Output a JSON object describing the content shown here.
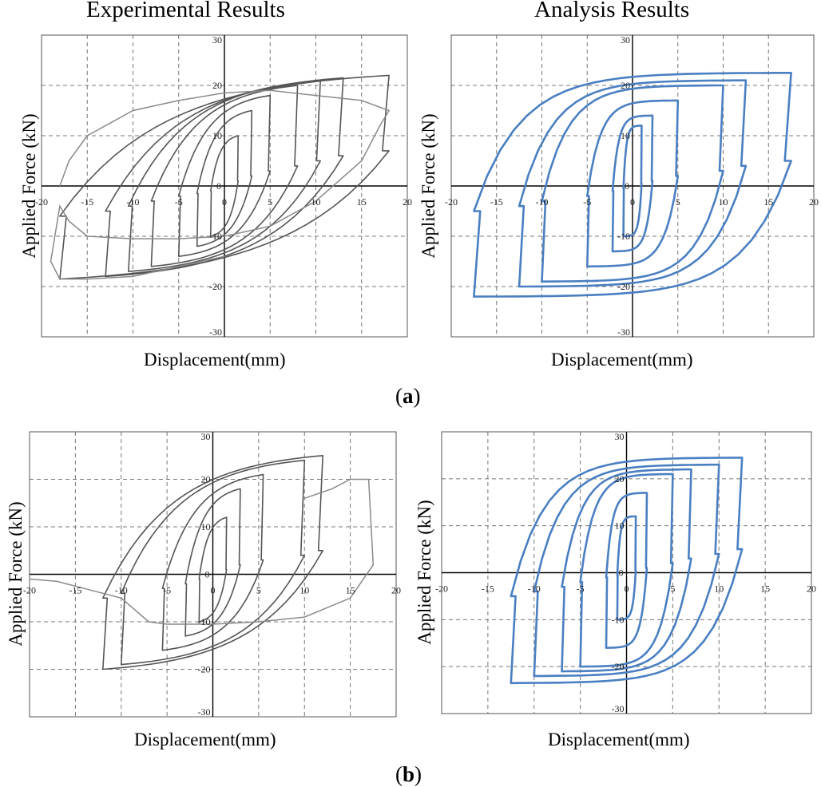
{
  "column_titles": {
    "left": "Experimental Results",
    "right": "Analysis Results"
  },
  "panel_labels": {
    "a_open": "(",
    "a": "a",
    "a_close": ")",
    "b_open": "(",
    "b": "b",
    "b_close": ")"
  },
  "colors": {
    "experimental": "#555555",
    "analysis": "#4a7fc2",
    "grid": "#777777"
  },
  "chart_data": [
    {
      "id": "a-experimental",
      "type": "line",
      "panel": "a",
      "title": "Experimental Results",
      "xlabel": "Displacement(mm)",
      "ylabel": "Applied Force (kN)",
      "xlim": [
        -20,
        20
      ],
      "ylim": [
        -30,
        30
      ],
      "xticks": [
        -20,
        -15,
        -10,
        -5,
        0,
        5,
        10,
        15,
        20
      ],
      "yticks": [
        -30,
        -20,
        -10,
        0,
        10,
        20,
        30
      ],
      "grid": true,
      "style": "experimental",
      "loops": [
        {
          "amp": 1.5,
          "fp": 10,
          "fn": -10,
          "vp": 1,
          "vn": -1
        },
        {
          "amp": 3,
          "fp": 15,
          "fn": -12,
          "vp": 2,
          "vn": -1.5
        },
        {
          "amp": 5,
          "fp": 18,
          "fn": -14,
          "vp": 3,
          "vn": -2
        },
        {
          "amp": 8,
          "fp": 20,
          "fn": -16,
          "vp": 4,
          "vn": -3
        },
        {
          "amp": 10.5,
          "fp": 21,
          "fn": -17,
          "vp": 5,
          "vn": -4
        },
        {
          "amp": 13,
          "fp": 21.5,
          "fn": -18,
          "vp": 6,
          "vn": -5
        },
        {
          "amp": 18,
          "fp": 22,
          "fn": -18.5,
          "vp": 7,
          "vn": -6
        }
      ],
      "extra_curve": {
        "x": [
          -18,
          -17,
          -15,
          -10,
          -5,
          0,
          5,
          10,
          15,
          18,
          17,
          15,
          10,
          5,
          0,
          -5,
          -10,
          -15,
          -17,
          -18,
          -19,
          -18,
          -15,
          -10,
          -5,
          0
        ],
        "y": [
          0,
          5,
          10,
          15,
          17,
          18.5,
          19,
          18,
          17,
          15,
          12,
          5,
          -3,
          -8,
          -10,
          -10.5,
          -10.5,
          -10,
          -7,
          -4,
          -15,
          -18.5,
          -18.5,
          -18,
          -16,
          -14
        ]
      }
    },
    {
      "id": "a-analysis",
      "type": "line",
      "panel": "a",
      "title": "Analysis Results",
      "xlabel": "Displacement(mm)",
      "ylabel": "Applied Force (kN)",
      "xlim": [
        -20,
        20
      ],
      "ylim": [
        -30,
        30
      ],
      "xticks": [
        -20,
        -15,
        -10,
        -5,
        0,
        5,
        10,
        15,
        20
      ],
      "yticks": [
        -30,
        -20,
        -10,
        0,
        10,
        20,
        30
      ],
      "grid": true,
      "style": "analysis",
      "loops": [
        {
          "amp": 1,
          "fp": 12,
          "fn": -10,
          "vp": 0.5,
          "vn": -0.5
        },
        {
          "amp": 2.2,
          "fp": 14,
          "fn": -13,
          "vp": 1,
          "vn": -1
        },
        {
          "amp": 5,
          "fp": 17,
          "fn": -16,
          "vp": 2,
          "vn": -2
        },
        {
          "amp": 10,
          "fp": 20,
          "fn": -19,
          "vp": 3,
          "vn": -3
        },
        {
          "amp": 12.5,
          "fp": 21,
          "fn": -20,
          "vp": 4,
          "vn": -4
        },
        {
          "amp": 17.5,
          "fp": 22.5,
          "fn": -22,
          "vp": 5,
          "vn": -5
        }
      ]
    },
    {
      "id": "b-experimental",
      "type": "line",
      "panel": "b",
      "title": "Experimental Results",
      "xlabel": "Displacement(mm)",
      "ylabel": "Applied Force (kN)",
      "xlim": [
        -20,
        20
      ],
      "ylim": [
        -30,
        30
      ],
      "xticks": [
        -20,
        -15,
        -10,
        -5,
        0,
        5,
        10,
        15,
        20
      ],
      "yticks": [
        -30,
        -20,
        -10,
        0,
        10,
        20,
        30
      ],
      "grid": true,
      "style": "experimental",
      "loops": [
        {
          "amp": 1.5,
          "fp": 12,
          "fn": -10,
          "vp": 1,
          "vn": -1
        },
        {
          "amp": 3,
          "fp": 18,
          "fn": -13,
          "vp": 2,
          "vn": -2
        },
        {
          "amp": 5.5,
          "fp": 21,
          "fn": -16,
          "vp": 3,
          "vn": -3
        },
        {
          "amp": 10,
          "fp": 24,
          "fn": -19,
          "vp": 4,
          "vn": -4
        },
        {
          "amp": 12,
          "fp": 25,
          "fn": -20,
          "vp": 5,
          "vn": -5
        }
      ],
      "extra_curve": {
        "x": [
          -20,
          -17,
          -14,
          -12,
          -10,
          -7,
          -5,
          0,
          5,
          10,
          15,
          17.5,
          17,
          15,
          13,
          10
        ],
        "y": [
          -1,
          -1.5,
          -3,
          -4,
          -5,
          -10,
          -10.5,
          -10.5,
          -10,
          -9,
          -5,
          2,
          20,
          20,
          18,
          16
        ]
      }
    },
    {
      "id": "b-analysis",
      "type": "line",
      "panel": "b",
      "title": "Analysis Results",
      "xlabel": "Displacement(mm)",
      "ylabel": "Applied Force (kN)",
      "xlim": [
        -20,
        20
      ],
      "ylim": [
        -30,
        30
      ],
      "xticks": [
        -20,
        -15,
        -10,
        -5,
        0,
        5,
        10,
        15,
        20
      ],
      "yticks": [
        -30,
        -20,
        -10,
        0,
        10,
        20,
        30
      ],
      "grid": true,
      "style": "analysis",
      "loops": [
        {
          "amp": 1,
          "fp": 12,
          "fn": -10,
          "vp": 0.5,
          "vn": -0.5
        },
        {
          "amp": 2.2,
          "fp": 17,
          "fn": -16,
          "vp": 1,
          "vn": -1
        },
        {
          "amp": 5,
          "fp": 21,
          "fn": -20,
          "vp": 2,
          "vn": -2
        },
        {
          "amp": 7,
          "fp": 22,
          "fn": -21,
          "vp": 3,
          "vn": -3
        },
        {
          "amp": 10,
          "fp": 23,
          "fn": -22,
          "vp": 4,
          "vn": -4
        },
        {
          "amp": 12.5,
          "fp": 24.5,
          "fn": -23.5,
          "vp": 5,
          "vn": -5
        }
      ]
    }
  ]
}
